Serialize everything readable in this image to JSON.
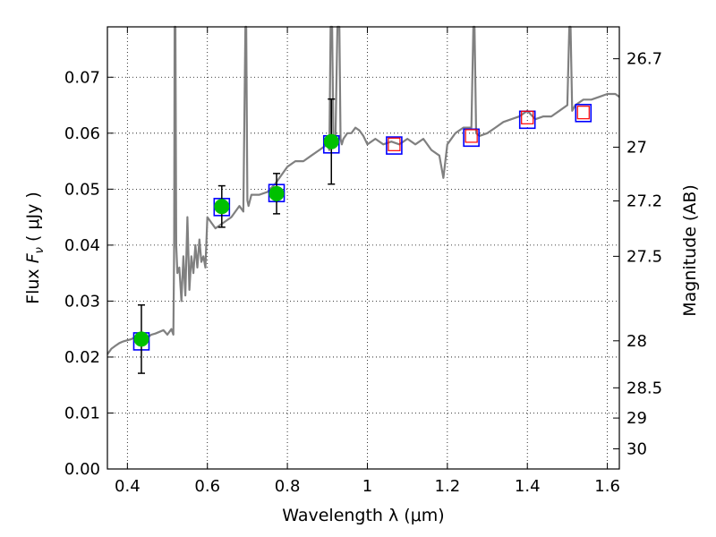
{
  "chart_data": {
    "type": "line",
    "xlabel": "Wavelength  λ (μm)",
    "ylabel": "Flux  F_ν  ( μJy )",
    "ylabel_parts": {
      "pre": "Flux  ",
      "fsym": "F",
      "fsub": "ν",
      "post": "  ( μJy )"
    },
    "y2label": "Magnitude (AB)",
    "xlim": [
      0.35,
      1.63
    ],
    "ylim": [
      0.0,
      0.079
    ],
    "grid": true,
    "x_ticks": [
      {
        "value": 0.4,
        "label": "0.4"
      },
      {
        "value": 0.6,
        "label": "0.6"
      },
      {
        "value": 0.8,
        "label": "0.8"
      },
      {
        "value": 1.0,
        "label": "1"
      },
      {
        "value": 1.2,
        "label": "1.2"
      },
      {
        "value": 1.4,
        "label": "1.4"
      },
      {
        "value": 1.6,
        "label": "1.6"
      }
    ],
    "y_ticks": [
      {
        "value": 0.0,
        "label": "0.00"
      },
      {
        "value": 0.01,
        "label": "0.01"
      },
      {
        "value": 0.02,
        "label": "0.02"
      },
      {
        "value": 0.03,
        "label": "0.03"
      },
      {
        "value": 0.04,
        "label": "0.04"
      },
      {
        "value": 0.05,
        "label": "0.05"
      },
      {
        "value": 0.06,
        "label": "0.06"
      },
      {
        "value": 0.07,
        "label": "0.07"
      }
    ],
    "mag_ticks": [
      {
        "flux": 0.0733,
        "label": "26.7"
      },
      {
        "flux": 0.0575,
        "label": "27"
      },
      {
        "flux": 0.0479,
        "label": "27.2"
      },
      {
        "flux": 0.038,
        "label": "27.5"
      },
      {
        "flux": 0.0229,
        "label": "28"
      },
      {
        "flux": 0.0145,
        "label": "28.5"
      },
      {
        "flux": 0.0091,
        "label": "29"
      },
      {
        "flux": 0.0036,
        "label": "30"
      }
    ],
    "model_spectrum": {
      "color": "#808080",
      "x": [
        0.35,
        0.36,
        0.37,
        0.38,
        0.39,
        0.4,
        0.41,
        0.42,
        0.43,
        0.44,
        0.45,
        0.46,
        0.47,
        0.48,
        0.49,
        0.5,
        0.51,
        0.515,
        0.517,
        0.518,
        0.52,
        0.522,
        0.525,
        0.53,
        0.535,
        0.54,
        0.545,
        0.55,
        0.555,
        0.56,
        0.565,
        0.57,
        0.575,
        0.58,
        0.585,
        0.59,
        0.595,
        0.6,
        0.62,
        0.64,
        0.66,
        0.68,
        0.69,
        0.695,
        0.697,
        0.7,
        0.703,
        0.71,
        0.73,
        0.75,
        0.77,
        0.79,
        0.8,
        0.82,
        0.84,
        0.86,
        0.88,
        0.9,
        0.905,
        0.908,
        0.912,
        0.915,
        0.92,
        0.925,
        0.93,
        0.933,
        0.936,
        0.94,
        0.95,
        0.96,
        0.97,
        0.98,
        0.99,
        1.0,
        1.02,
        1.04,
        1.06,
        1.08,
        1.1,
        1.12,
        1.14,
        1.16,
        1.18,
        1.19,
        1.2,
        1.22,
        1.24,
        1.26,
        1.265,
        1.268,
        1.272,
        1.28,
        1.3,
        1.32,
        1.34,
        1.36,
        1.38,
        1.4,
        1.42,
        1.44,
        1.46,
        1.48,
        1.5,
        1.505,
        1.508,
        1.512,
        1.52,
        1.54,
        1.56,
        1.58,
        1.6,
        1.62,
        1.63
      ],
      "y": [
        0.0205,
        0.0215,
        0.022,
        0.0225,
        0.0228,
        0.023,
        0.0232,
        0.0236,
        0.024,
        0.0238,
        0.0235,
        0.024,
        0.0242,
        0.0245,
        0.0248,
        0.024,
        0.025,
        0.024,
        0.04,
        0.085,
        0.085,
        0.04,
        0.035,
        0.036,
        0.03,
        0.038,
        0.031,
        0.045,
        0.032,
        0.038,
        0.035,
        0.04,
        0.036,
        0.041,
        0.037,
        0.038,
        0.036,
        0.045,
        0.043,
        0.044,
        0.045,
        0.047,
        0.046,
        0.085,
        0.085,
        0.048,
        0.047,
        0.049,
        0.049,
        0.0495,
        0.051,
        0.053,
        0.054,
        0.055,
        0.055,
        0.056,
        0.057,
        0.058,
        0.057,
        0.085,
        0.085,
        0.059,
        0.058,
        0.085,
        0.085,
        0.059,
        0.058,
        0.059,
        0.06,
        0.06,
        0.061,
        0.0605,
        0.0595,
        0.058,
        0.059,
        0.058,
        0.0585,
        0.058,
        0.059,
        0.058,
        0.059,
        0.057,
        0.056,
        0.052,
        0.058,
        0.06,
        0.061,
        0.061,
        0.085,
        0.085,
        0.06,
        0.0595,
        0.06,
        0.061,
        0.062,
        0.0625,
        0.063,
        0.064,
        0.0625,
        0.063,
        0.063,
        0.064,
        0.065,
        0.085,
        0.085,
        0.064,
        0.065,
        0.066,
        0.066,
        0.0665,
        0.067,
        0.067,
        0.0665
      ]
    },
    "photometry": {
      "x": [
        0.435,
        0.636,
        0.773,
        0.91
      ],
      "y": [
        0.0232,
        0.0469,
        0.0492,
        0.0585
      ],
      "err": [
        0.0061,
        0.0037,
        0.0036,
        0.0076
      ],
      "color": "#00c000"
    },
    "model_boxes": {
      "x": [
        0.435,
        0.636,
        0.773,
        0.91,
        1.067,
        1.26,
        1.4,
        1.54
      ],
      "y": [
        0.0228,
        0.0468,
        0.0493,
        0.058,
        0.0578,
        0.0592,
        0.0624,
        0.0636
      ],
      "color": "#0000ff"
    },
    "upper_limits": {
      "x": [
        1.067,
        1.26,
        1.4,
        1.54
      ],
      "y": [
        0.058,
        0.0595,
        0.0628,
        0.0637
      ],
      "color": "#ff0000"
    }
  }
}
